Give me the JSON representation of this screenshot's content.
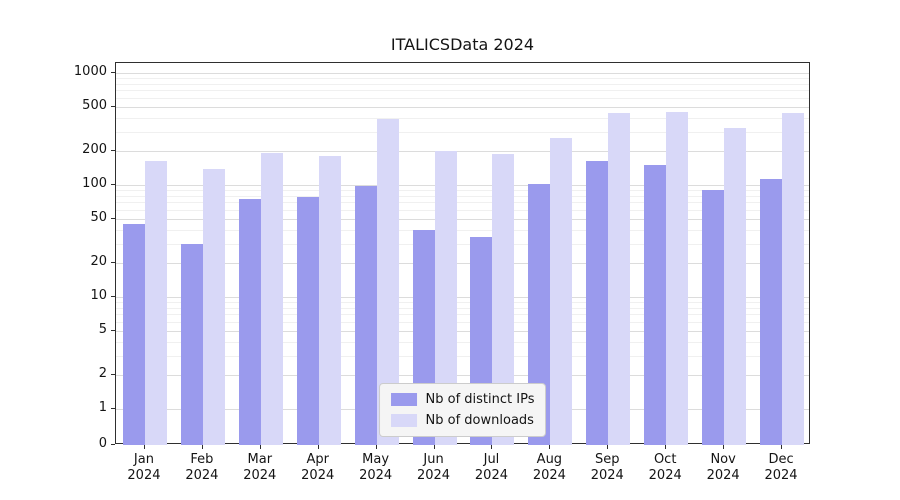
{
  "title": "ITALICSData 2024",
  "chart_data": {
    "type": "bar",
    "title": "ITALICSData 2024",
    "x_tick_year": "2024",
    "categories": [
      "Jan",
      "Feb",
      "Mar",
      "Apr",
      "May",
      "Jun",
      "Jul",
      "Aug",
      "Sep",
      "Oct",
      "Nov",
      "Dec"
    ],
    "series": [
      {
        "name": "Nb of distinct IPs",
        "color": "#9a9aed",
        "values": [
          45,
          30,
          75,
          78,
          97,
          40,
          34,
          103,
          163,
          152,
          90,
          113
        ]
      },
      {
        "name": "Nb of downloads",
        "color": "#d8d8f8",
        "values": [
          165,
          140,
          192,
          180,
          385,
          200,
          190,
          263,
          435,
          445,
          325,
          440
        ]
      }
    ],
    "y_scale": "symlog",
    "y_ticks": [
      0,
      1,
      2,
      5,
      10,
      20,
      50,
      100,
      200,
      500,
      1000
    ],
    "y_minor_ticks": [
      3,
      4,
      6,
      7,
      8,
      9,
      30,
      40,
      60,
      70,
      80,
      90,
      300,
      400,
      600,
      700,
      800,
      900
    ],
    "ylim": [
      0,
      1230
    ],
    "grid": true,
    "legend_position": "lower center"
  },
  "colors": {
    "background": "#ffffff",
    "grid_major": "#dcdcdc",
    "grid_minor": "#f0f0f0",
    "spine": "#2f2f2f",
    "text": "#141414",
    "series_ips": "#9a9aed",
    "series_downloads": "#d8d8f8"
  }
}
